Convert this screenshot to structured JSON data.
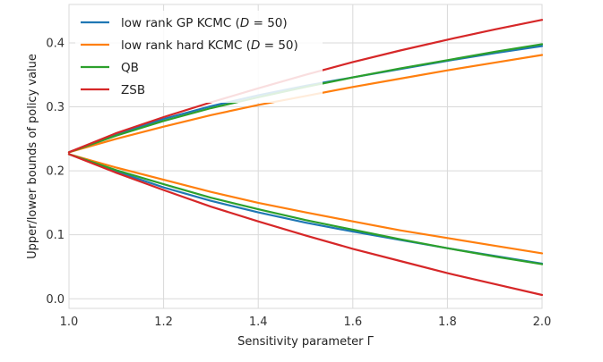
{
  "chart_data": {
    "type": "line",
    "title": "",
    "xlabel": "Sensitivity parameter Γ",
    "ylabel": "Upper/lower bounds of policy value",
    "xlim": [
      1.0,
      2.0
    ],
    "ylim": [
      -0.015,
      0.46
    ],
    "xticks": [
      1.0,
      1.2,
      1.4,
      1.6,
      1.8,
      2.0
    ],
    "xtick_labels": [
      "1.0",
      "1.2",
      "1.4",
      "1.6",
      "1.8",
      "2.0"
    ],
    "yticks": [
      0.0,
      0.1,
      0.2,
      0.3,
      0.4
    ],
    "ytick_labels": [
      "0.0",
      "0.1",
      "0.2",
      "0.3",
      "0.4"
    ],
    "grid": true,
    "legend_position": "top-left",
    "x": [
      1.0,
      1.1,
      1.2,
      1.3,
      1.4,
      1.5,
      1.6,
      1.7,
      1.8,
      1.9,
      2.0
    ],
    "series": [
      {
        "name": "low rank GP KCMC (D = 50)",
        "legend_prefix": "low rank GP KCMC (",
        "legend_math": "D",
        "legend_suffix": " = 50)",
        "color": "#1f77b4",
        "upper": [
          0.229,
          0.257,
          0.281,
          0.301,
          0.318,
          0.333,
          0.346,
          0.359,
          0.372,
          0.384,
          0.395
        ],
        "lower": [
          0.226,
          0.199,
          0.174,
          0.153,
          0.135,
          0.119,
          0.105,
          0.092,
          0.079,
          0.067,
          0.055
        ]
      },
      {
        "name": "low rank hard KCMC (D = 50)",
        "legend_prefix": "low rank hard KCMC (",
        "legend_math": "D",
        "legend_suffix": " = 50)",
        "color": "#ff7f0e",
        "upper": [
          0.229,
          0.25,
          0.269,
          0.287,
          0.303,
          0.317,
          0.331,
          0.344,
          0.357,
          0.369,
          0.381
        ],
        "lower": [
          0.226,
          0.205,
          0.186,
          0.167,
          0.15,
          0.135,
          0.121,
          0.107,
          0.095,
          0.083,
          0.071
        ]
      },
      {
        "name": "QB",
        "legend_prefix": "QB",
        "legend_math": "",
        "legend_suffix": "",
        "color": "#2ca02c",
        "upper": [
          0.229,
          0.255,
          0.278,
          0.298,
          0.315,
          0.331,
          0.346,
          0.36,
          0.373,
          0.386,
          0.398
        ],
        "lower": [
          0.226,
          0.201,
          0.179,
          0.158,
          0.14,
          0.123,
          0.108,
          0.093,
          0.079,
          0.066,
          0.054
        ]
      },
      {
        "name": "ZSB",
        "legend_prefix": "ZSB",
        "legend_math": "",
        "legend_suffix": "",
        "color": "#d62728",
        "upper": [
          0.229,
          0.259,
          0.284,
          0.307,
          0.329,
          0.35,
          0.37,
          0.388,
          0.405,
          0.421,
          0.436
        ],
        "lower": [
          0.226,
          0.197,
          0.17,
          0.144,
          0.121,
          0.099,
          0.078,
          0.059,
          0.04,
          0.023,
          0.006
        ]
      }
    ]
  }
}
